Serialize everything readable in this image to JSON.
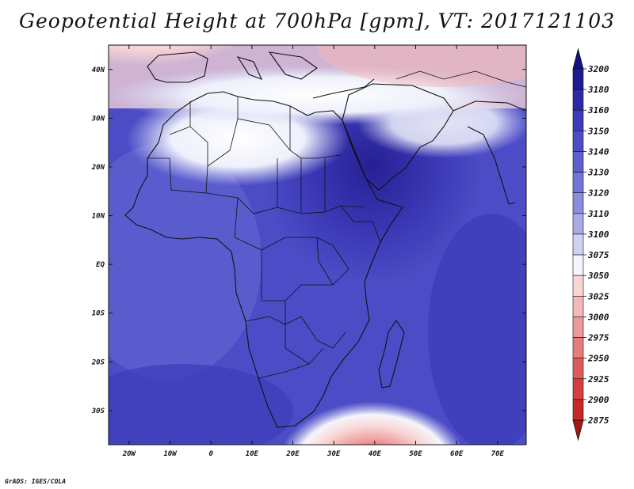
{
  "title": "Geopotential Height at 700hPa [gpm], VT: 2017121103",
  "credit": "GrADS: IGES/COLA",
  "map": {
    "lon_range": [
      -25,
      77
    ],
    "lat_range": [
      -37,
      45
    ],
    "lon_ticks": [
      "20W",
      "10W",
      "0",
      "10E",
      "20E",
      "30E",
      "40E",
      "50E",
      "60E",
      "70E"
    ],
    "lat_ticks": [
      "40N",
      "30N",
      "20N",
      "10N",
      "EQ",
      "10S",
      "20S",
      "30S"
    ],
    "features": {
      "high_center": "Horn of Africa / Arabia",
      "low_centers": [
        "Iberia / Western Europe",
        "South of Madagascar"
      ]
    }
  },
  "colorbar": {
    "levels": [
      "3200",
      "3180",
      "3160",
      "3150",
      "3140",
      "3130",
      "3120",
      "3110",
      "3100",
      "3075",
      "3050",
      "3025",
      "3000",
      "2975",
      "2950",
      "2925",
      "2900",
      "2875"
    ],
    "colors": {
      "top_arrow": "#161286",
      "bands": [
        "#1e1a8f",
        "#2d29a6",
        "#3d3cb9",
        "#4c4dc6",
        "#5e60cf",
        "#7274d7",
        "#8b8de0",
        "#a8aae8",
        "#cfd1f3",
        "#f5f5fb",
        "#f9d6d6",
        "#f5b8b8",
        "#ef9a9a",
        "#e87b7b",
        "#df5a5a",
        "#d63f3f",
        "#c72828"
      ],
      "bottom_arrow": "#a81414"
    }
  }
}
